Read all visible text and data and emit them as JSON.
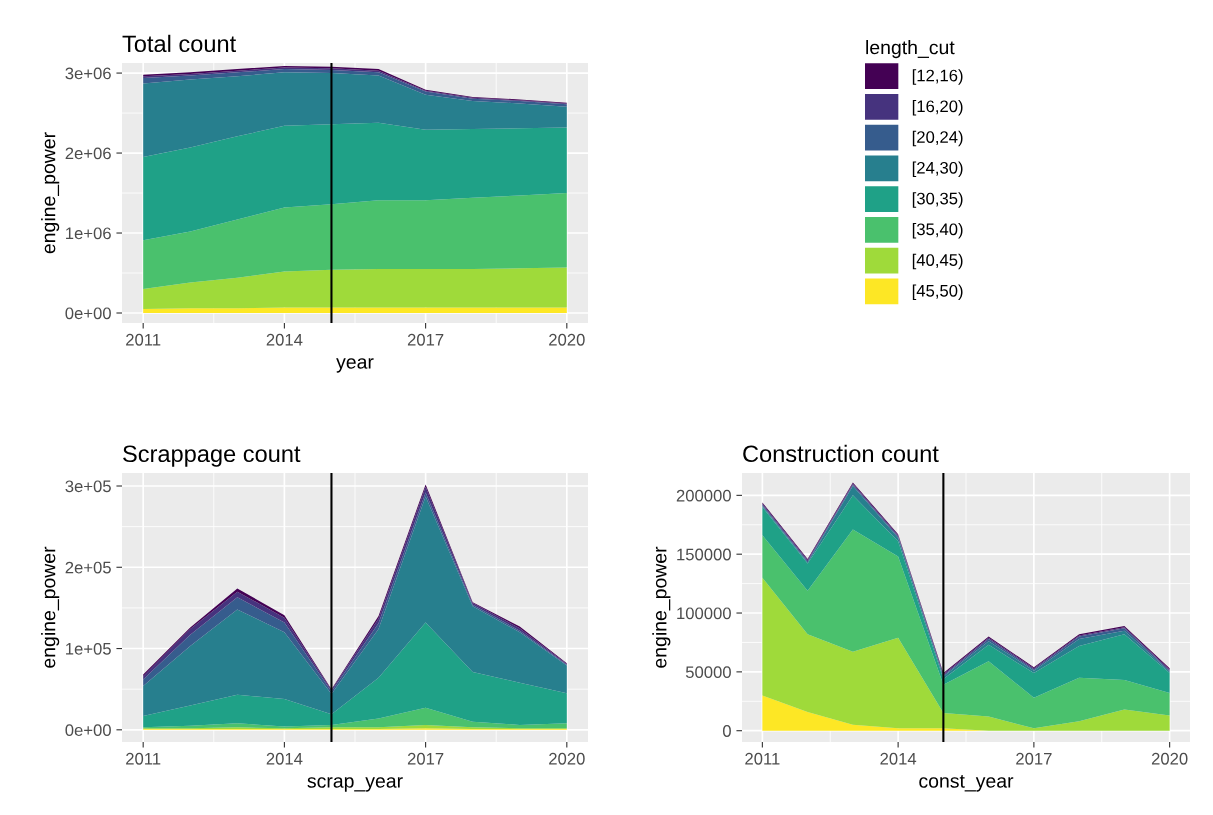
{
  "chart_data": [
    {
      "type": "area",
      "stacked": true,
      "title": "Total count",
      "xlabel": "year",
      "ylabel": "engine_power",
      "legend_title": "length_cut",
      "legend": "right",
      "grid": true,
      "x": [
        2011,
        2012,
        2013,
        2014,
        2015,
        2016,
        2017,
        2018,
        2019,
        2020
      ],
      "xlim": [
        2010.55,
        2020.45
      ],
      "xticks": [
        2011,
        2014,
        2017,
        2020
      ],
      "ylim": [
        -125000,
        3126000
      ],
      "yticks": [
        {
          "value": 0,
          "label": "0e+00"
        },
        {
          "value": 1000000,
          "label": "1e+06"
        },
        {
          "value": 2000000,
          "label": "2e+06"
        },
        {
          "value": 3000000,
          "label": "3e+06"
        }
      ],
      "ref_lines": [
        {
          "axis": "x",
          "value": 2015,
          "color": "#000000"
        }
      ],
      "series": [
        {
          "name": "[45,50)",
          "color": "#fde725",
          "values": [
            50000,
            60000,
            60000,
            70000,
            70000,
            70000,
            70000,
            70000,
            70000,
            70000
          ]
        },
        {
          "name": "[40,45)",
          "color": "#9fda3a",
          "values": [
            250000,
            320000,
            380000,
            450000,
            470000,
            480000,
            480000,
            480000,
            490000,
            500000
          ]
        },
        {
          "name": "[35,40)",
          "color": "#4ac16d",
          "values": [
            610000,
            640000,
            730000,
            800000,
            820000,
            860000,
            860000,
            890000,
            910000,
            930000
          ]
        },
        {
          "name": "[30,35)",
          "color": "#1fa187",
          "values": [
            1040000,
            1050000,
            1040000,
            1020000,
            1000000,
            970000,
            880000,
            860000,
            840000,
            820000
          ]
        },
        {
          "name": "[24,30)",
          "color": "#277f8e",
          "values": [
            920000,
            850000,
            750000,
            670000,
            640000,
            590000,
            440000,
            350000,
            310000,
            260000
          ]
        },
        {
          "name": "[20,24)",
          "color": "#365c8d",
          "values": [
            70000,
            50000,
            50000,
            40000,
            40000,
            40000,
            40000,
            30000,
            30000,
            30000
          ]
        },
        {
          "name": "[16,20)",
          "color": "#46337e",
          "values": [
            20000,
            20000,
            20000,
            20000,
            20000,
            20000,
            10000,
            10000,
            10000,
            10000
          ]
        },
        {
          "name": "[12,16)",
          "color": "#440154",
          "values": [
            20000,
            20000,
            20000,
            20000,
            20000,
            20000,
            10000,
            10000,
            10000,
            10000
          ]
        }
      ]
    },
    {
      "type": "area",
      "stacked": true,
      "title": "Scrappage count",
      "xlabel": "scrap_year",
      "ylabel": "engine_power",
      "grid": true,
      "x": [
        2011,
        2012,
        2013,
        2014,
        2015,
        2016,
        2017,
        2018,
        2019,
        2020
      ],
      "xlim": [
        2010.55,
        2020.45
      ],
      "xticks": [
        2011,
        2014,
        2017,
        2020
      ],
      "ylim": [
        -15000,
        316000
      ],
      "yticks": [
        {
          "value": 0,
          "label": "0e+00"
        },
        {
          "value": 100000,
          "label": "1e+05"
        },
        {
          "value": 200000,
          "label": "2e+05"
        },
        {
          "value": 300000,
          "label": "3e+05"
        }
      ],
      "ref_lines": [
        {
          "axis": "x",
          "value": 2015,
          "color": "#000000"
        }
      ],
      "series": [
        {
          "color": "#fde725",
          "values": [
            1000,
            1000,
            1000,
            1000,
            1000,
            1000,
            2000,
            1000,
            1000,
            1000
          ]
        },
        {
          "color": "#9fda3a",
          "values": [
            1000,
            1000,
            2000,
            1000,
            2000,
            2000,
            4000,
            2000,
            1000,
            1000
          ]
        },
        {
          "color": "#4ac16d",
          "values": [
            1000,
            3000,
            5000,
            2000,
            3000,
            11000,
            21000,
            7000,
            4000,
            6000
          ]
        },
        {
          "color": "#1fa187",
          "values": [
            14000,
            25000,
            35000,
            34000,
            13000,
            50000,
            105000,
            61000,
            52000,
            37000
          ]
        },
        {
          "color": "#277f8e",
          "values": [
            37000,
            73000,
            105000,
            82000,
            25000,
            60000,
            155000,
            81000,
            62000,
            34000
          ]
        },
        {
          "color": "#365c8d",
          "values": [
            8000,
            14000,
            15000,
            12000,
            3000,
            7000,
            5000,
            2000,
            2000,
            1000
          ]
        },
        {
          "color": "#46337e",
          "values": [
            4000,
            7000,
            7000,
            6000,
            2000,
            6000,
            7000,
            2000,
            3000,
            1000
          ]
        },
        {
          "color": "#440154",
          "values": [
            2000,
            2000,
            4000,
            3000,
            1000,
            3000,
            3000,
            1000,
            2000,
            1000
          ]
        }
      ]
    },
    {
      "type": "area",
      "stacked": true,
      "title": "Construction count",
      "xlabel": "const_year",
      "ylabel": "engine_power",
      "grid": true,
      "x": [
        2011,
        2012,
        2013,
        2014,
        2015,
        2016,
        2017,
        2018,
        2019,
        2020
      ],
      "xlim": [
        2010.55,
        2020.45
      ],
      "xticks": [
        2011,
        2014,
        2017,
        2020
      ],
      "ylim": [
        -9600,
        219000
      ],
      "yticks": [
        0,
        50000,
        100000,
        150000,
        200000
      ],
      "ref_lines": [
        {
          "axis": "x",
          "value": 2015,
          "color": "#000000"
        }
      ],
      "series": [
        {
          "color": "#fde725",
          "values": [
            30000,
            16000,
            5000,
            2000,
            2000,
            0,
            0,
            0,
            0,
            0
          ]
        },
        {
          "color": "#9fda3a",
          "values": [
            100000,
            66000,
            62000,
            77000,
            13000,
            12000,
            2000,
            8000,
            18000,
            13000
          ]
        },
        {
          "color": "#4ac16d",
          "values": [
            36000,
            37000,
            104000,
            69000,
            24000,
            47000,
            26000,
            37000,
            25000,
            19000
          ]
        },
        {
          "color": "#1fa187",
          "values": [
            24000,
            23000,
            29000,
            13000,
            5000,
            14000,
            21000,
            27000,
            39000,
            17000
          ]
        },
        {
          "color": "#277f8e",
          "values": [
            1000,
            1000,
            8000,
            3000,
            2000,
            3000,
            2000,
            6000,
            3000,
            1000
          ]
        },
        {
          "color": "#365c8d",
          "values": [
            1000,
            1000,
            1000,
            1000,
            1000,
            2000,
            1000,
            2000,
            2000,
            1000
          ]
        },
        {
          "color": "#46337e",
          "values": [
            1000,
            1000,
            1000,
            1000,
            1000,
            1000,
            1000,
            1000,
            1000,
            1000
          ]
        },
        {
          "color": "#440154",
          "values": [
            1000,
            1000,
            1000,
            1000,
            1000,
            1000,
            1000,
            1000,
            1000,
            1000
          ]
        }
      ]
    }
  ]
}
